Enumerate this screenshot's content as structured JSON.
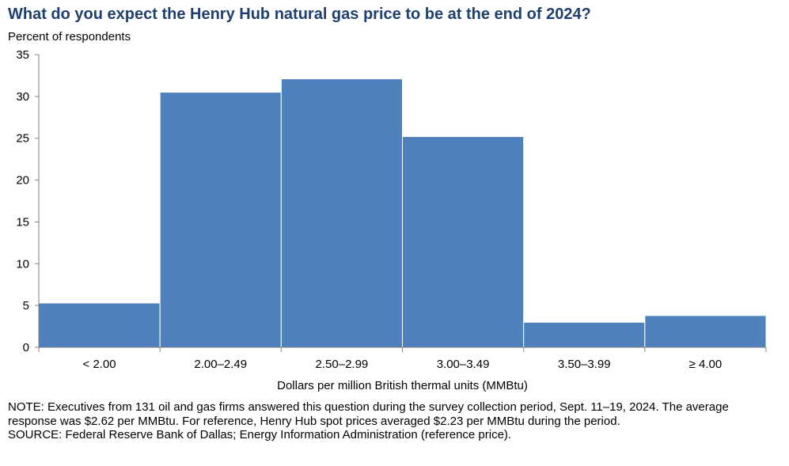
{
  "chart_data": {
    "type": "bar",
    "title": "What do you expect the Henry Hub natural gas price to be at the end of 2024?",
    "ylabel": "Percent of respondents",
    "xlabel": "Dollars per million British thermal units (MMBtu)",
    "categories": [
      "< 2.00",
      "2.00–2.49",
      "2.50–2.99",
      "3.00–3.49",
      "3.50–3.99",
      "≥ 4.00"
    ],
    "values": [
      5.3,
      30.5,
      32.1,
      25.2,
      3.0,
      3.8
    ],
    "ylim": [
      0,
      35
    ],
    "yticks": [
      0,
      5,
      10,
      15,
      20,
      25,
      30,
      35
    ],
    "bar_color": "#4f81bd",
    "grid": false,
    "legend": "none"
  },
  "notes": {
    "note": "NOTE: Executives from 131 oil and gas firms answered this question during the survey collection period, Sept. 11–19, 2024. The average response was $2.62 per MMBtu. For reference, Henry Hub spot prices averaged $2.23 per MMBtu during the period.",
    "source": "SOURCE: Federal Reserve Bank of Dallas; Energy Information Administration (reference price)."
  }
}
